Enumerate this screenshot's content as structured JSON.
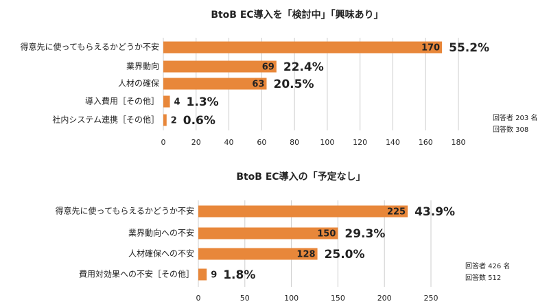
{
  "chart_data": [
    {
      "type": "bar",
      "orientation": "horizontal",
      "title": "BtoB EC導入を「検討中」「興味あり」",
      "categories": [
        "得意先に使ってもらえるかどうか不安",
        "業界動向",
        "人材の確保",
        "導入費用［その他］",
        "社内システム連携［その他］"
      ],
      "values": [
        170,
        69,
        63,
        4,
        2
      ],
      "color": "#e8873a",
      "shares": {
        "values": [
          55.2,
          22.4,
          20.5,
          1.3,
          0.6
        ],
        "value_labels": [
          "55.2%",
          "22.4%",
          "20.5%",
          "1.3%",
          "0.6%"
        ]
      },
      "xlim": [
        0,
        180
      ],
      "xticks": [
        0,
        20,
        40,
        60,
        80,
        100,
        120,
        140,
        160,
        180
      ],
      "grid": true,
      "notes": [
        "回答者 203 名",
        "回答数 308"
      ]
    },
    {
      "type": "bar",
      "orientation": "horizontal",
      "title": "BtoB EC導入の「予定なし」",
      "categories": [
        "得意先に使ってもらえるかどうか不安",
        "業界動向への不安",
        "人材確保への不安",
        "費用対効果への不安［その他］"
      ],
      "values": [
        225,
        150,
        128,
        9
      ],
      "color": "#e8873a",
      "shares": {
        "values": [
          43.9,
          29.3,
          25.0,
          1.8
        ],
        "value_labels": [
          "43.9%",
          "29.3%",
          "25.0%",
          "1.8%"
        ]
      },
      "xlim": [
        0,
        250
      ],
      "xticks": [
        0,
        50,
        100,
        150,
        200,
        250
      ],
      "grid": true,
      "notes": [
        "回答者 426 名",
        "回答数 512"
      ]
    }
  ]
}
